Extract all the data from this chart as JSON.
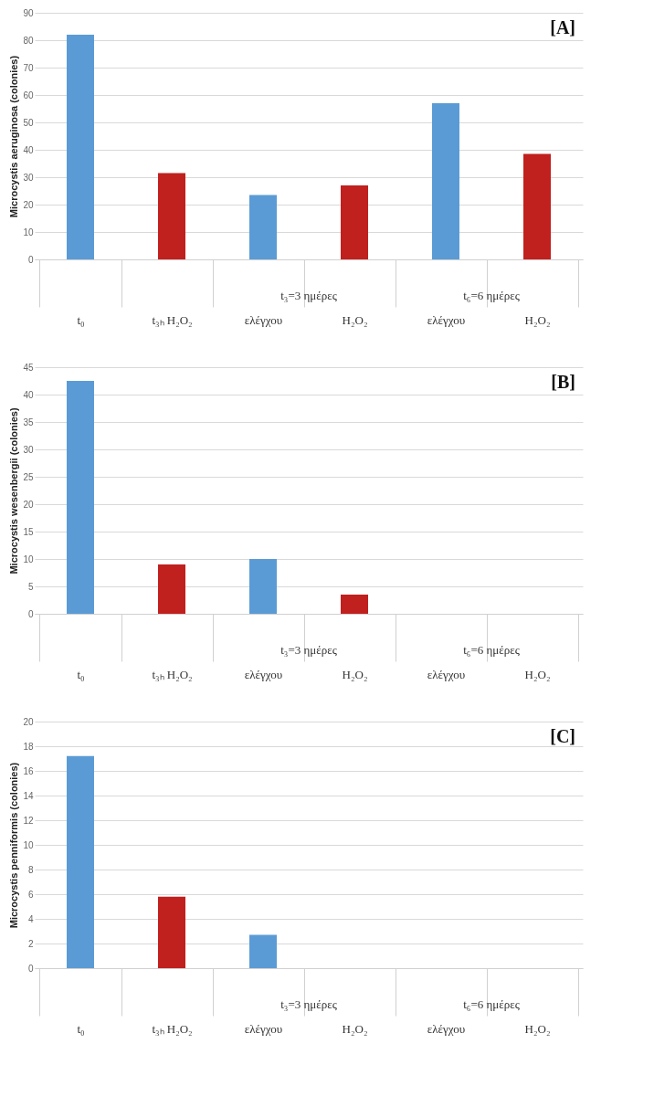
{
  "chart_data": [
    {
      "type": "bar",
      "title": "[A]",
      "ylabel": "Microcystis aeruginosa (colonies)",
      "categories": [
        "t₀",
        "t₃ₕ H₂O₂",
        "ελέγχου",
        "H₂O₂",
        "ελέγχου",
        "H₂O₂"
      ],
      "values": [
        82,
        31.5,
        23.5,
        27,
        57,
        38.5
      ],
      "colors": [
        "#5b9bd5",
        "#c0201e",
        "#5b9bd5",
        "#c0201e",
        "#5b9bd5",
        "#c0201e"
      ],
      "ylim": [
        0,
        90
      ],
      "yticks": [
        0,
        10,
        20,
        30,
        40,
        50,
        60,
        70,
        80,
        90
      ],
      "grid": "y",
      "annotations": [
        "t₃=3 ημέρες",
        "t₆=6 ημέρες"
      ]
    },
    {
      "type": "bar",
      "title": "[B]",
      "ylabel": "Microcystis wesenbergii (colonies)",
      "categories": [
        "t₀",
        "t₃ₕ H₂O₂",
        "ελέγχου",
        "H₂O₂",
        "ελέγχου",
        "H₂O₂"
      ],
      "values": [
        42.5,
        9,
        10,
        3.5,
        0,
        0
      ],
      "colors": [
        "#5b9bd5",
        "#c0201e",
        "#5b9bd5",
        "#c0201e",
        "#5b9bd5",
        "#c0201e"
      ],
      "ylim": [
        0,
        45
      ],
      "yticks": [
        0,
        5,
        10,
        15,
        20,
        25,
        30,
        35,
        40,
        45
      ],
      "grid": "y",
      "annotations": [
        "t₃=3 ημέρες",
        "t₆=6 ημέρες"
      ]
    },
    {
      "type": "bar",
      "title": "[C]",
      "ylabel": "Microcystis penniformis (colonies)",
      "categories": [
        "t₀",
        "t₃ₕ H₂O₂",
        "ελέγχου",
        "H₂O₂",
        "ελέγχου",
        "H₂O₂"
      ],
      "values": [
        17.2,
        5.8,
        2.7,
        0,
        0,
        0
      ],
      "colors": [
        "#5b9bd5",
        "#c0201e",
        "#5b9bd5",
        "#c0201e",
        "#5b9bd5",
        "#c0201e"
      ],
      "ylim": [
        0,
        20
      ],
      "yticks": [
        0,
        2,
        4,
        6,
        8,
        10,
        12,
        14,
        16,
        18,
        20
      ],
      "grid": "y",
      "annotations": [
        "t₃=3 ημέρες",
        "t₆=6 ημέρες"
      ]
    }
  ]
}
